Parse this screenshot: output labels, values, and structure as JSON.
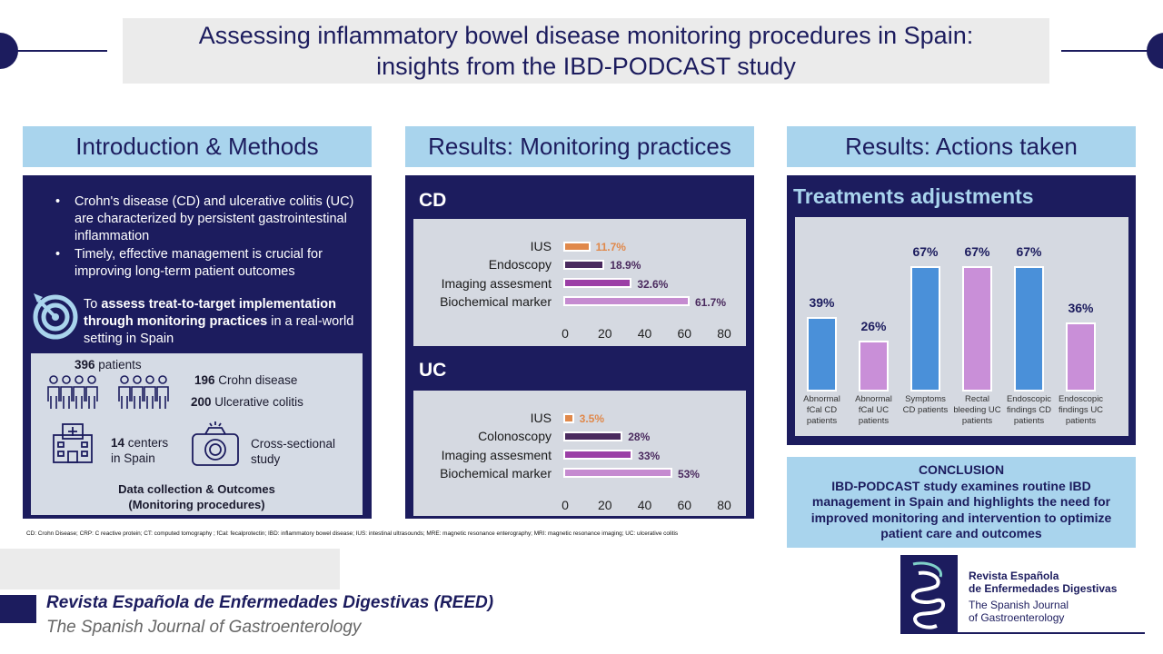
{
  "title": {
    "line1": "Assessing inflammatory bowel disease monitoring procedures in Spain:",
    "line2": "insights from the IBD-PODCAST study"
  },
  "headers": {
    "intro": "Introduction & Methods",
    "monitoring": "Results: Monitoring practices",
    "actions": "Results: Actions taken"
  },
  "intro": {
    "bullet1": "Crohn's disease (CD) and ulcerative colitis (UC) are characterized by persistent gastrointestinal inflammation",
    "bullet2": "Timely, effective management is crucial for improving long-term patient outcomes",
    "aim_pre": "To ",
    "aim_bold": "assess treat-to-target implementation through monitoring practices",
    "aim_post": " in a real-world setting in Spain",
    "patients_num": "396",
    "patients_label": "patients",
    "cd_num": "196",
    "cd_label": "Crohn disease",
    "uc_num": "200",
    "uc_label": "Ulcerative colitis",
    "centers_num": "14",
    "centers_label1": "centers",
    "centers_label2": "in Spain",
    "study1": "Cross-sectional",
    "study2": "study",
    "dc1": "Data collection & Outcomes",
    "dc2": "(Monitoring procedures)"
  },
  "abbreviations": "CD: Crohn Disease; CRP: C reactive protein; CT: computed tomography ; fCal: fecalprotectin; IBD: inflammatory bowel disease; IUS: intestinal ultrasounds; MRE: magnetic resonance enterography; MRI: magnetic resonance imaging; UC: ulcerative colitis",
  "conclusion": {
    "title": "CONCLUSION",
    "body": "IBD-PODCAST study examines routine IBD management in Spain and highlights the need for improved monitoring and intervention to optimize patient care and outcomes"
  },
  "footer": {
    "journal": "Revista Española de Enfermedades Digestivas (REED)",
    "journal_en": "The Spanish Journal of Gastroenterology",
    "logo_l1a": "Revista Española",
    "logo_l1b": "de Enfermedades Digestivas",
    "logo_l2a": "The Spanish Journal",
    "logo_l2b": "of Gastroenterology"
  },
  "colors": {
    "navy": "#1c1c5e",
    "lightblue": "#a9d4ed",
    "orange": "#e0884a",
    "darkpurple": "#4a2a5e",
    "purple": "#9b3fa6",
    "lavender": "#c58bd0",
    "blue": "#4a90d9",
    "pink": "#c98fd8"
  },
  "chart_data": [
    {
      "type": "bar",
      "orientation": "horizontal",
      "title": "CD",
      "categories": [
        "IUS",
        "Endoscopy",
        "Imaging assesment",
        "Biochemical marker"
      ],
      "values": [
        11.7,
        18.9,
        32.6,
        61.7
      ],
      "value_labels": [
        "11.7%",
        "18.9%",
        "32.6%",
        "61.7%"
      ],
      "colors": [
        "#e0884a",
        "#4a2a5e",
        "#9b3fa6",
        "#c58bd0"
      ],
      "xlim": [
        0,
        80
      ],
      "xticks": [
        "0",
        "20",
        "40",
        "60",
        "80"
      ]
    },
    {
      "type": "bar",
      "orientation": "horizontal",
      "title": "UC",
      "categories": [
        "IUS",
        "Colonoscopy",
        "Imaging assesment",
        "Biochemical marker"
      ],
      "values": [
        3.5,
        28,
        33,
        53
      ],
      "value_labels": [
        "3.5%",
        "28%",
        "33%",
        "53%"
      ],
      "colors": [
        "#e0884a",
        "#4a2a5e",
        "#9b3fa6",
        "#c58bd0"
      ],
      "xlim": [
        0,
        80
      ],
      "xticks": [
        "0",
        "20",
        "40",
        "60",
        "80"
      ]
    },
    {
      "type": "bar",
      "title": "Treatments adjustments",
      "categories": [
        "Abnormal fCal CD patients",
        "Abnormal fCal UC patients",
        "Symptoms CD patients",
        "Rectal bleeding UC patients",
        "Endoscopic findings CD patients",
        "Endoscopic findings UC patients"
      ],
      "category_lines": [
        [
          "Abnormal",
          "fCal CD",
          "patients"
        ],
        [
          "Abnormal",
          "fCal UC",
          "patients"
        ],
        [
          "Symptoms",
          "CD patients"
        ],
        [
          "Rectal",
          "bleeding UC",
          "patients"
        ],
        [
          "Endoscopic",
          "findings CD",
          "patients"
        ],
        [
          "Endoscopic",
          "findings UC",
          "patients"
        ]
      ],
      "values": [
        39,
        26,
        67,
        67,
        67,
        36
      ],
      "value_labels": [
        "39%",
        "26%",
        "67%",
        "67%",
        "67%",
        "36%"
      ],
      "colors": [
        "#4a90d9",
        "#c98fd8",
        "#4a90d9",
        "#c98fd8",
        "#4a90d9",
        "#c98fd8"
      ],
      "ylim": [
        0,
        80
      ]
    }
  ]
}
